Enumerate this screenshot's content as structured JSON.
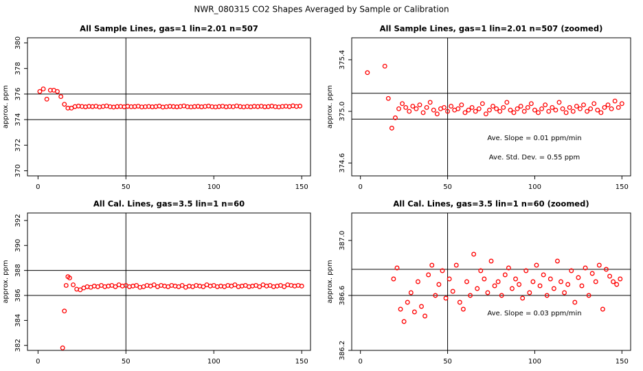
{
  "title": "NWR_080315  CO2 Shapes Averaged by Sample or Calibration",
  "chart_data": [
    {
      "type": "scatter",
      "title": "All Sample Lines, gas=1 lin=2.01 n=507",
      "ylabel": "approx. ppm",
      "color": "#ff0000",
      "xlim": [
        -6,
        155
      ],
      "xticks": [
        0,
        50,
        100,
        150
      ],
      "ylim": [
        369.6,
        380.4
      ],
      "yticks": [
        370,
        372,
        374,
        376,
        378,
        380
      ],
      "hlines": [
        374,
        376
      ],
      "vline": 50,
      "x": [
        1,
        3,
        5,
        7,
        9,
        11,
        13,
        15,
        17,
        19,
        21,
        23,
        25,
        27,
        29,
        31,
        33,
        35,
        37,
        39,
        41,
        43,
        45,
        47,
        49,
        51,
        53,
        55,
        57,
        59,
        61,
        63,
        65,
        67,
        69,
        71,
        73,
        75,
        77,
        79,
        81,
        83,
        85,
        87,
        89,
        91,
        93,
        95,
        97,
        99,
        101,
        103,
        105,
        107,
        109,
        111,
        113,
        115,
        117,
        119,
        121,
        123,
        125,
        127,
        129,
        131,
        133,
        135,
        137,
        139,
        141,
        143,
        145,
        147,
        149
      ],
      "values": [
        376.2,
        376.4,
        375.6,
        376.3,
        376.3,
        376.2,
        375.8,
        375.2,
        374.9,
        374.9,
        375.02,
        375.06,
        375.03,
        375.0,
        375.04,
        375.02,
        375.05,
        374.99,
        375.03,
        375.07,
        375.01,
        374.98,
        375.02,
        375.03,
        375.0,
        375.04,
        375.01,
        375.02,
        375.05,
        374.99,
        375.01,
        375.03,
        375.0,
        375.02,
        375.06,
        374.98,
        375.01,
        375.04,
        375.02,
        375.0,
        375.03,
        375.07,
        375.01,
        374.99,
        375.02,
        375.04,
        375.0,
        375.03,
        375.06,
        375.01,
        374.99,
        375.02,
        375.05,
        375.0,
        375.03,
        375.01,
        375.07,
        375.02,
        374.99,
        375.03,
        375.0,
        375.04,
        375.02,
        375.05,
        375.0,
        375.02,
        375.06,
        375.01,
        374.99,
        375.03,
        375.05,
        375.02,
        375.08,
        375.03,
        375.06
      ]
    },
    {
      "type": "scatter",
      "title": "All Sample Lines, gas=1 lin=2.01 n=507 (zoomed)",
      "ylabel": "approx. ppm",
      "color": "#ff0000",
      "xlim": [
        -5,
        155
      ],
      "xticks": [
        0,
        50,
        100,
        150
      ],
      "ylim": [
        374.5,
        375.57
      ],
      "yticks": [
        374.6,
        {
          "value": 375,
          "label": "375.0"
        },
        375.4
      ],
      "hlines": [
        374.94,
        375.14
      ],
      "vline": 50,
      "annotations": [
        "Ave. Slope =  0.01  ppm/min",
        "Ave. Std. Dev. =  0.55  ppm"
      ],
      "x": [
        4,
        14,
        16,
        18,
        20,
        22,
        24,
        26,
        28,
        30,
        32,
        34,
        36,
        38,
        40,
        42,
        44,
        46,
        48,
        50,
        52,
        54,
        56,
        58,
        60,
        62,
        64,
        66,
        68,
        70,
        72,
        74,
        76,
        78,
        80,
        82,
        84,
        86,
        88,
        90,
        92,
        94,
        96,
        98,
        100,
        102,
        104,
        106,
        108,
        110,
        112,
        114,
        116,
        118,
        120,
        122,
        124,
        126,
        128,
        130,
        132,
        134,
        136,
        138,
        140,
        142,
        144,
        146,
        148,
        150
      ],
      "values": [
        375.3,
        375.35,
        375.1,
        374.87,
        374.95,
        375.02,
        375.06,
        375.03,
        375.0,
        375.04,
        375.02,
        375.05,
        374.99,
        375.03,
        375.07,
        375.01,
        374.98,
        375.02,
        375.03,
        375.0,
        375.04,
        375.01,
        375.02,
        375.05,
        374.99,
        375.01,
        375.03,
        375.0,
        375.02,
        375.06,
        374.98,
        375.01,
        375.04,
        375.02,
        375.0,
        375.03,
        375.07,
        375.01,
        374.99,
        375.02,
        375.04,
        375.0,
        375.03,
        375.06,
        375.01,
        374.99,
        375.02,
        375.05,
        375.0,
        375.03,
        375.01,
        375.07,
        375.02,
        374.99,
        375.03,
        375.0,
        375.04,
        375.02,
        375.05,
        375.0,
        375.02,
        375.06,
        375.01,
        374.99,
        375.03,
        375.05,
        375.02,
        375.08,
        375.03,
        375.06
      ]
    },
    {
      "type": "scatter",
      "title": "All Cal. Lines, gas=3.5 lin=1 n=60",
      "ylabel": "approx. ppm",
      "color": "#ff0000",
      "xlim": [
        -6,
        155
      ],
      "xticks": [
        0,
        50,
        100,
        150
      ],
      "ylim": [
        381.6,
        392.6
      ],
      "yticks": [
        382,
        384,
        386,
        388,
        390,
        392
      ],
      "hlines": [
        386,
        388
      ],
      "vline": 50,
      "x": [
        14,
        15,
        16,
        17,
        18,
        20,
        22,
        24,
        26,
        28,
        30,
        32,
        34,
        36,
        38,
        40,
        42,
        44,
        46,
        48,
        50,
        52,
        54,
        56,
        58,
        60,
        62,
        64,
        66,
        68,
        70,
        72,
        74,
        76,
        78,
        80,
        82,
        84,
        86,
        88,
        90,
        92,
        94,
        96,
        98,
        100,
        102,
        104,
        106,
        108,
        110,
        112,
        114,
        116,
        118,
        120,
        122,
        124,
        126,
        128,
        130,
        132,
        134,
        136,
        138,
        140,
        142,
        144,
        146,
        148,
        150
      ],
      "values": [
        381.8,
        384.75,
        386.8,
        387.5,
        387.4,
        386.85,
        386.5,
        386.45,
        386.6,
        386.7,
        386.65,
        386.75,
        386.7,
        386.8,
        386.7,
        386.75,
        386.8,
        386.7,
        386.85,
        386.75,
        386.8,
        386.7,
        386.75,
        386.8,
        386.65,
        386.7,
        386.8,
        386.75,
        386.85,
        386.7,
        386.8,
        386.75,
        386.7,
        386.8,
        386.75,
        386.7,
        386.8,
        386.65,
        386.75,
        386.7,
        386.8,
        386.75,
        386.7,
        386.85,
        386.75,
        386.8,
        386.7,
        386.75,
        386.7,
        386.8,
        386.75,
        386.85,
        386.7,
        386.75,
        386.8,
        386.7,
        386.75,
        386.8,
        386.7,
        386.85,
        386.75,
        386.8,
        386.7,
        386.75,
        386.8,
        386.7,
        386.85,
        386.8,
        386.75,
        386.8,
        386.75
      ]
    },
    {
      "type": "scatter",
      "title": "All Cal. Lines, gas=3.5 lin=1 n=60 (zoomed)",
      "ylabel": "approx. ppm",
      "color": "#ff0000",
      "xlim": [
        -5,
        155
      ],
      "xticks": [
        0,
        50,
        100,
        150
      ],
      "ylim": [
        386.2,
        387.2
      ],
      "yticks": [
        386.2,
        386.6,
        {
          "value": 387,
          "label": "387.0"
        }
      ],
      "hlines": [
        386.6,
        386.79
      ],
      "vline": 50,
      "annotations": [
        "Ave. Slope =  0.03  ppm/min"
      ],
      "x": [
        19,
        21,
        23,
        25,
        27,
        29,
        31,
        33,
        35,
        37,
        39,
        41,
        43,
        45,
        47,
        49,
        51,
        53,
        55,
        57,
        59,
        61,
        63,
        65,
        67,
        69,
        71,
        73,
        75,
        77,
        79,
        81,
        83,
        85,
        87,
        89,
        91,
        93,
        95,
        97,
        99,
        101,
        103,
        105,
        107,
        109,
        111,
        113,
        115,
        117,
        119,
        121,
        123,
        125,
        127,
        129,
        131,
        133,
        135,
        137,
        139,
        141,
        143,
        145,
        147,
        149
      ],
      "values": [
        386.72,
        386.8,
        386.5,
        386.41,
        386.55,
        386.62,
        386.48,
        386.7,
        386.52,
        386.45,
        386.75,
        386.82,
        386.6,
        386.68,
        386.78,
        386.58,
        386.72,
        386.63,
        386.82,
        386.55,
        386.5,
        386.7,
        386.6,
        386.9,
        386.65,
        386.78,
        386.72,
        386.62,
        386.85,
        386.67,
        386.7,
        386.6,
        386.75,
        386.8,
        386.65,
        386.72,
        386.68,
        386.58,
        386.78,
        386.62,
        386.7,
        386.82,
        386.67,
        386.75,
        386.6,
        386.72,
        386.65,
        386.85,
        386.7,
        386.62,
        386.68,
        386.78,
        386.55,
        386.73,
        386.67,
        386.8,
        386.6,
        386.76,
        386.7,
        386.82,
        386.5,
        386.79,
        386.74,
        386.7,
        386.68,
        386.72
      ]
    }
  ]
}
